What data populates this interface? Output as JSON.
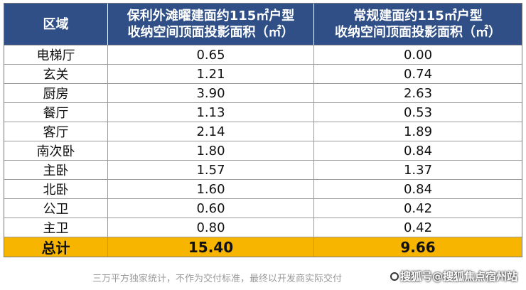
{
  "table": {
    "headers": {
      "area": "区域",
      "col1_line1": "保利外滩曜建面约115㎡户型",
      "col1_line2": "收纳空间顶面投影面积（㎡）",
      "col2_line1": "常规建面约115㎡户型",
      "col2_line2": "收纳空间顶面投影面积（㎡）"
    },
    "rows": [
      {
        "area": "电梯厅",
        "v1": "0.65",
        "v2": "0.00"
      },
      {
        "area": "玄关",
        "v1": "1.21",
        "v2": "0.74"
      },
      {
        "area": "厨房",
        "v1": "3.90",
        "v2": "2.63"
      },
      {
        "area": "餐厅",
        "v1": "1.13",
        "v2": "0.53"
      },
      {
        "area": "客厅",
        "v1": "2.14",
        "v2": "1.89"
      },
      {
        "area": "南次卧",
        "v1": "1.80",
        "v2": "0.84"
      },
      {
        "area": "主卧",
        "v1": "1.57",
        "v2": "1.37"
      },
      {
        "area": "北卧",
        "v1": "1.60",
        "v2": "0.84"
      },
      {
        "area": "公卫",
        "v1": "0.60",
        "v2": "0.42"
      },
      {
        "area": "主卫",
        "v1": "0.80",
        "v2": "0.42"
      }
    ],
    "total": {
      "area": "总计",
      "v1": "15.40",
      "v2": "9.66"
    }
  },
  "footer": {
    "note": "三万平方独家统计，不作为交付标准，最终以开发商实际交付",
    "source": "搜狐号@搜狐焦点宿州站"
  },
  "colors": {
    "header_bg": "#2f4f86",
    "total_bg": "#f7b500"
  }
}
